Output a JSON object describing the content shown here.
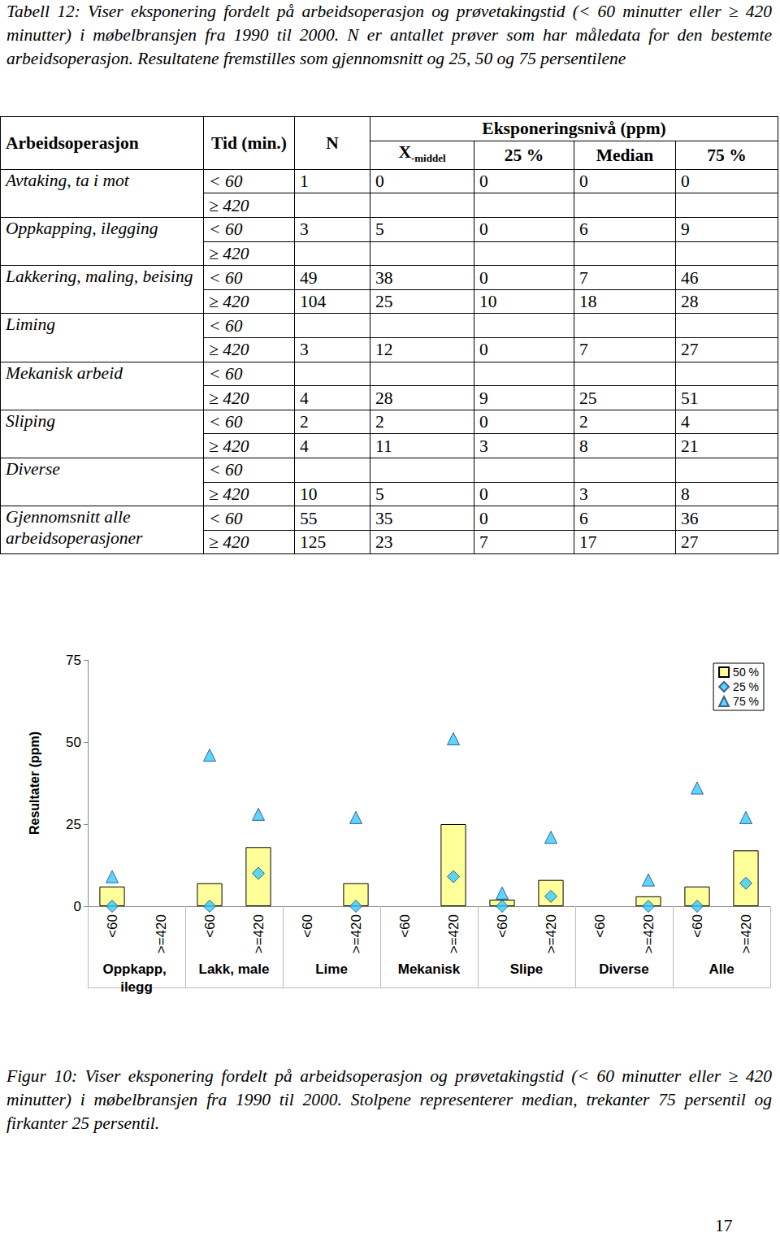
{
  "table_caption": "Tabell 12: Viser eksponering fordelt på arbeidsoperasjon og prøvetakingstid (< 60 minutter eller ≥ 420 minutter) i møbelbransjen fra 1990 til 2000. N er antallet prøver som har måledata for den bestemte arbeidsoperasjon. Resultatene fremstilles som gjennomsnitt og 25, 50 og 75 persentilene",
  "table": {
    "header": [
      "Arbeidsoperasjon",
      "Tid (min.)",
      "N",
      "Eksponeringsnivå (ppm)"
    ],
    "subheader": [
      {
        "main": "X",
        "sub": "-middel"
      },
      "25 %",
      "Median",
      "75 %"
    ],
    "groups": [
      {
        "operation": "Avtaking, ta i mot",
        "rows": [
          [
            "< 60",
            1,
            0,
            0,
            0,
            0
          ],
          [
            "≥ 420",
            null,
            null,
            null,
            null,
            null
          ]
        ]
      },
      {
        "operation": "Oppkapping, ilegging",
        "rows": [
          [
            "< 60",
            3,
            5,
            0,
            6,
            9
          ],
          [
            "≥ 420",
            null,
            null,
            null,
            null,
            null
          ]
        ]
      },
      {
        "operation": "Lakkering, maling, beising",
        "rows": [
          [
            "< 60",
            49,
            38,
            0,
            7,
            46
          ],
          [
            "≥ 420",
            104,
            25,
            10,
            18,
            28
          ]
        ]
      },
      {
        "operation": "Liming",
        "rows": [
          [
            "< 60",
            null,
            null,
            null,
            null,
            null
          ],
          [
            "≥ 420",
            3,
            12,
            0,
            7,
            27
          ]
        ]
      },
      {
        "operation": "Mekanisk arbeid",
        "rows": [
          [
            "< 60",
            null,
            null,
            null,
            null,
            null
          ],
          [
            "≥ 420",
            4,
            28,
            9,
            25,
            51
          ]
        ]
      },
      {
        "operation": "Sliping",
        "rows": [
          [
            "< 60",
            2,
            2,
            0,
            2,
            4
          ],
          [
            "≥ 420",
            4,
            11,
            3,
            8,
            21
          ]
        ]
      },
      {
        "operation": "Diverse",
        "rows": [
          [
            "< 60",
            null,
            null,
            null,
            null,
            null
          ],
          [
            "≥ 420",
            10,
            5,
            0,
            3,
            8
          ]
        ]
      },
      {
        "operation": "Gjennomsnitt alle arbeidsoperasjoner",
        "rows": [
          [
            "< 60",
            55,
            35,
            0,
            6,
            36
          ],
          [
            "≥ 420",
            125,
            23,
            7,
            17,
            27
          ]
        ]
      }
    ]
  },
  "chart_data": {
    "type": "bar",
    "ylabel": "Resultater (ppm)",
    "categories": [
      "<60",
      ">=420",
      "<60",
      ">=420",
      "<60",
      ">=420",
      "<60",
      ">=420",
      "<60",
      ">=420",
      "<60",
      ">=420",
      "<60",
      ">=420"
    ],
    "groups": [
      "Oppkapp, ilegg",
      "Lakk, male",
      "Lime",
      "Mekanisk",
      "Slipe",
      "Diverse",
      "Alle"
    ],
    "series": [
      {
        "name": "50 %",
        "type": "bar",
        "color": "#ffff99",
        "values": [
          6,
          null,
          7,
          18,
          null,
          7,
          null,
          25,
          2,
          8,
          null,
          3,
          6,
          17
        ]
      },
      {
        "name": "25 %",
        "type": "scatter",
        "marker": "diamond",
        "color": "#33ccff",
        "values": [
          0,
          null,
          0,
          10,
          null,
          0,
          null,
          9,
          0,
          3,
          null,
          0,
          0,
          7
        ]
      },
      {
        "name": "75 %",
        "type": "scatter",
        "marker": "triangle",
        "color": "#33ccff",
        "values": [
          9,
          null,
          46,
          28,
          null,
          27,
          null,
          51,
          4,
          21,
          null,
          8,
          36,
          27
        ]
      }
    ],
    "ylim": [
      0,
      75
    ],
    "yticks": [
      0,
      25,
      50,
      75
    ],
    "grid": false,
    "legend": "upper right"
  },
  "figure_caption": "Figur 10: Viser eksponering fordelt på arbeidsoperasjon og prøvetakingstid (< 60 minutter eller ≥ 420 minutter) i møbelbransjen fra 1990 til 2000. Stolpene representerer median, trekanter 75 persentil og firkanter 25 persentil.",
  "page_number": 17
}
